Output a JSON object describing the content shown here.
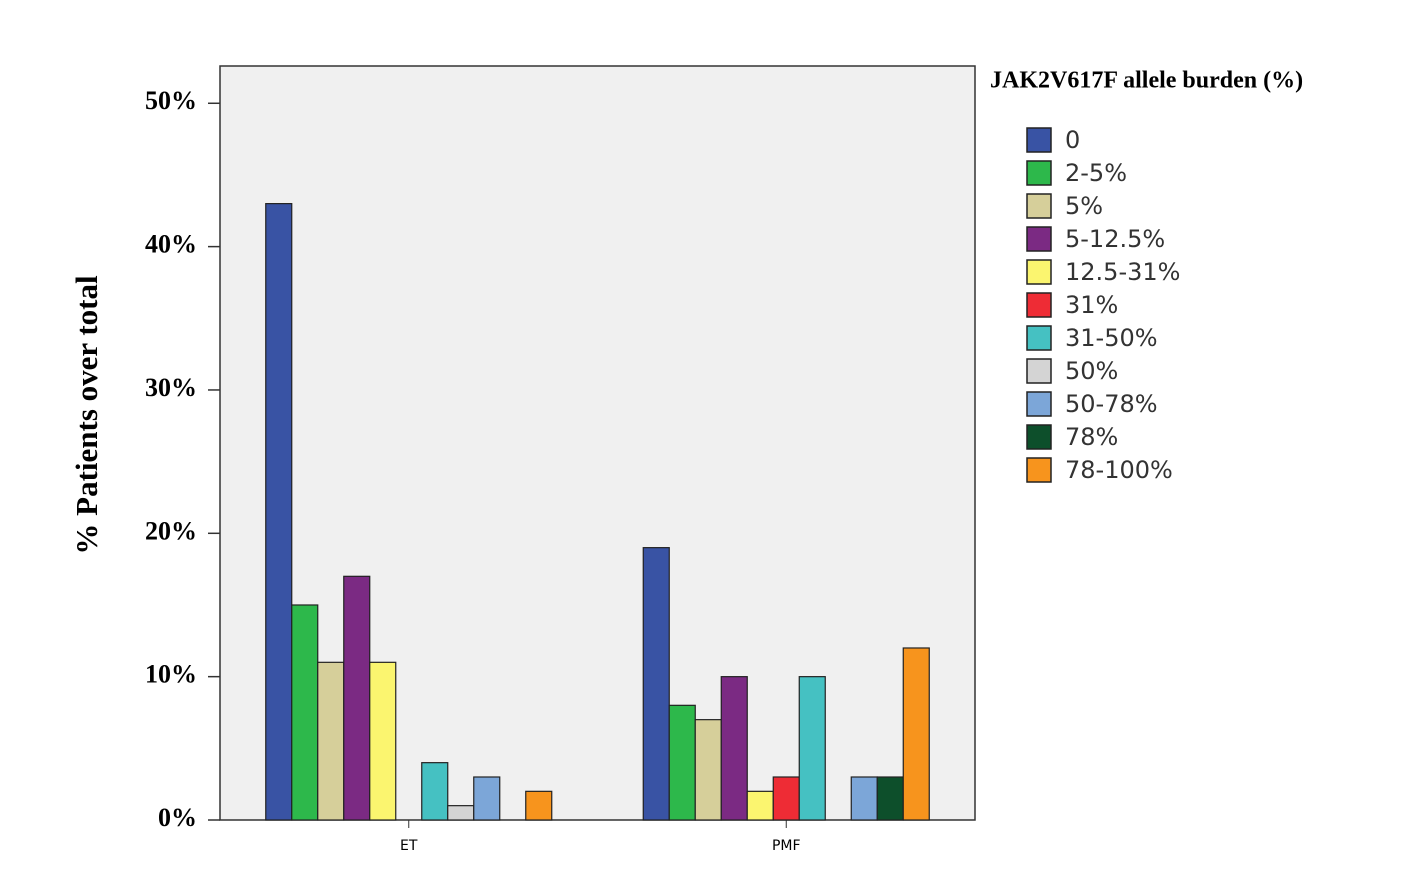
{
  "chart_data": {
    "type": "bar",
    "y_label": "% Patients over total",
    "legend_title": "JAK2V617F allele burden (%)",
    "legend": "right",
    "categories": [
      "ET",
      "PMF"
    ],
    "series": [
      {
        "name": "0",
        "color": "#3953a4",
        "values": [
          43,
          19
        ]
      },
      {
        "name": "2-5%",
        "color": "#2db84b",
        "values": [
          15,
          8
        ]
      },
      {
        "name": "5%",
        "color": "#d6cf9a",
        "values": [
          11,
          7
        ]
      },
      {
        "name": "5-12.5%",
        "color": "#7b2a83",
        "values": [
          17,
          10
        ]
      },
      {
        "name": "12.5-31%",
        "color": "#fbf56f",
        "values": [
          11,
          2
        ]
      },
      {
        "name": "31%",
        "color": "#ee2c35",
        "values": [
          0,
          3
        ]
      },
      {
        "name": "31-50%",
        "color": "#45c1c2",
        "values": [
          4,
          10
        ]
      },
      {
        "name": "50%",
        "color": "#d4d4d4",
        "values": [
          1,
          0
        ]
      },
      {
        "name": "50-78%",
        "color": "#7ca6d8",
        "values": [
          3,
          3
        ]
      },
      {
        "name": "78%",
        "color": "#0d4f2b",
        "values": [
          0,
          3
        ]
      },
      {
        "name": "78-100%",
        "color": "#f7941d",
        "values": [
          2,
          12
        ]
      }
    ],
    "ylim": [
      0,
      52.6
    ],
    "yticks": [
      {
        "value": 0,
        "label": "0%"
      },
      {
        "value": 10,
        "label": "10%"
      },
      {
        "value": 20,
        "label": "20%"
      },
      {
        "value": 30,
        "label": "30%"
      },
      {
        "value": 40,
        "label": "40%"
      },
      {
        "value": 50,
        "label": "50%"
      }
    ]
  }
}
